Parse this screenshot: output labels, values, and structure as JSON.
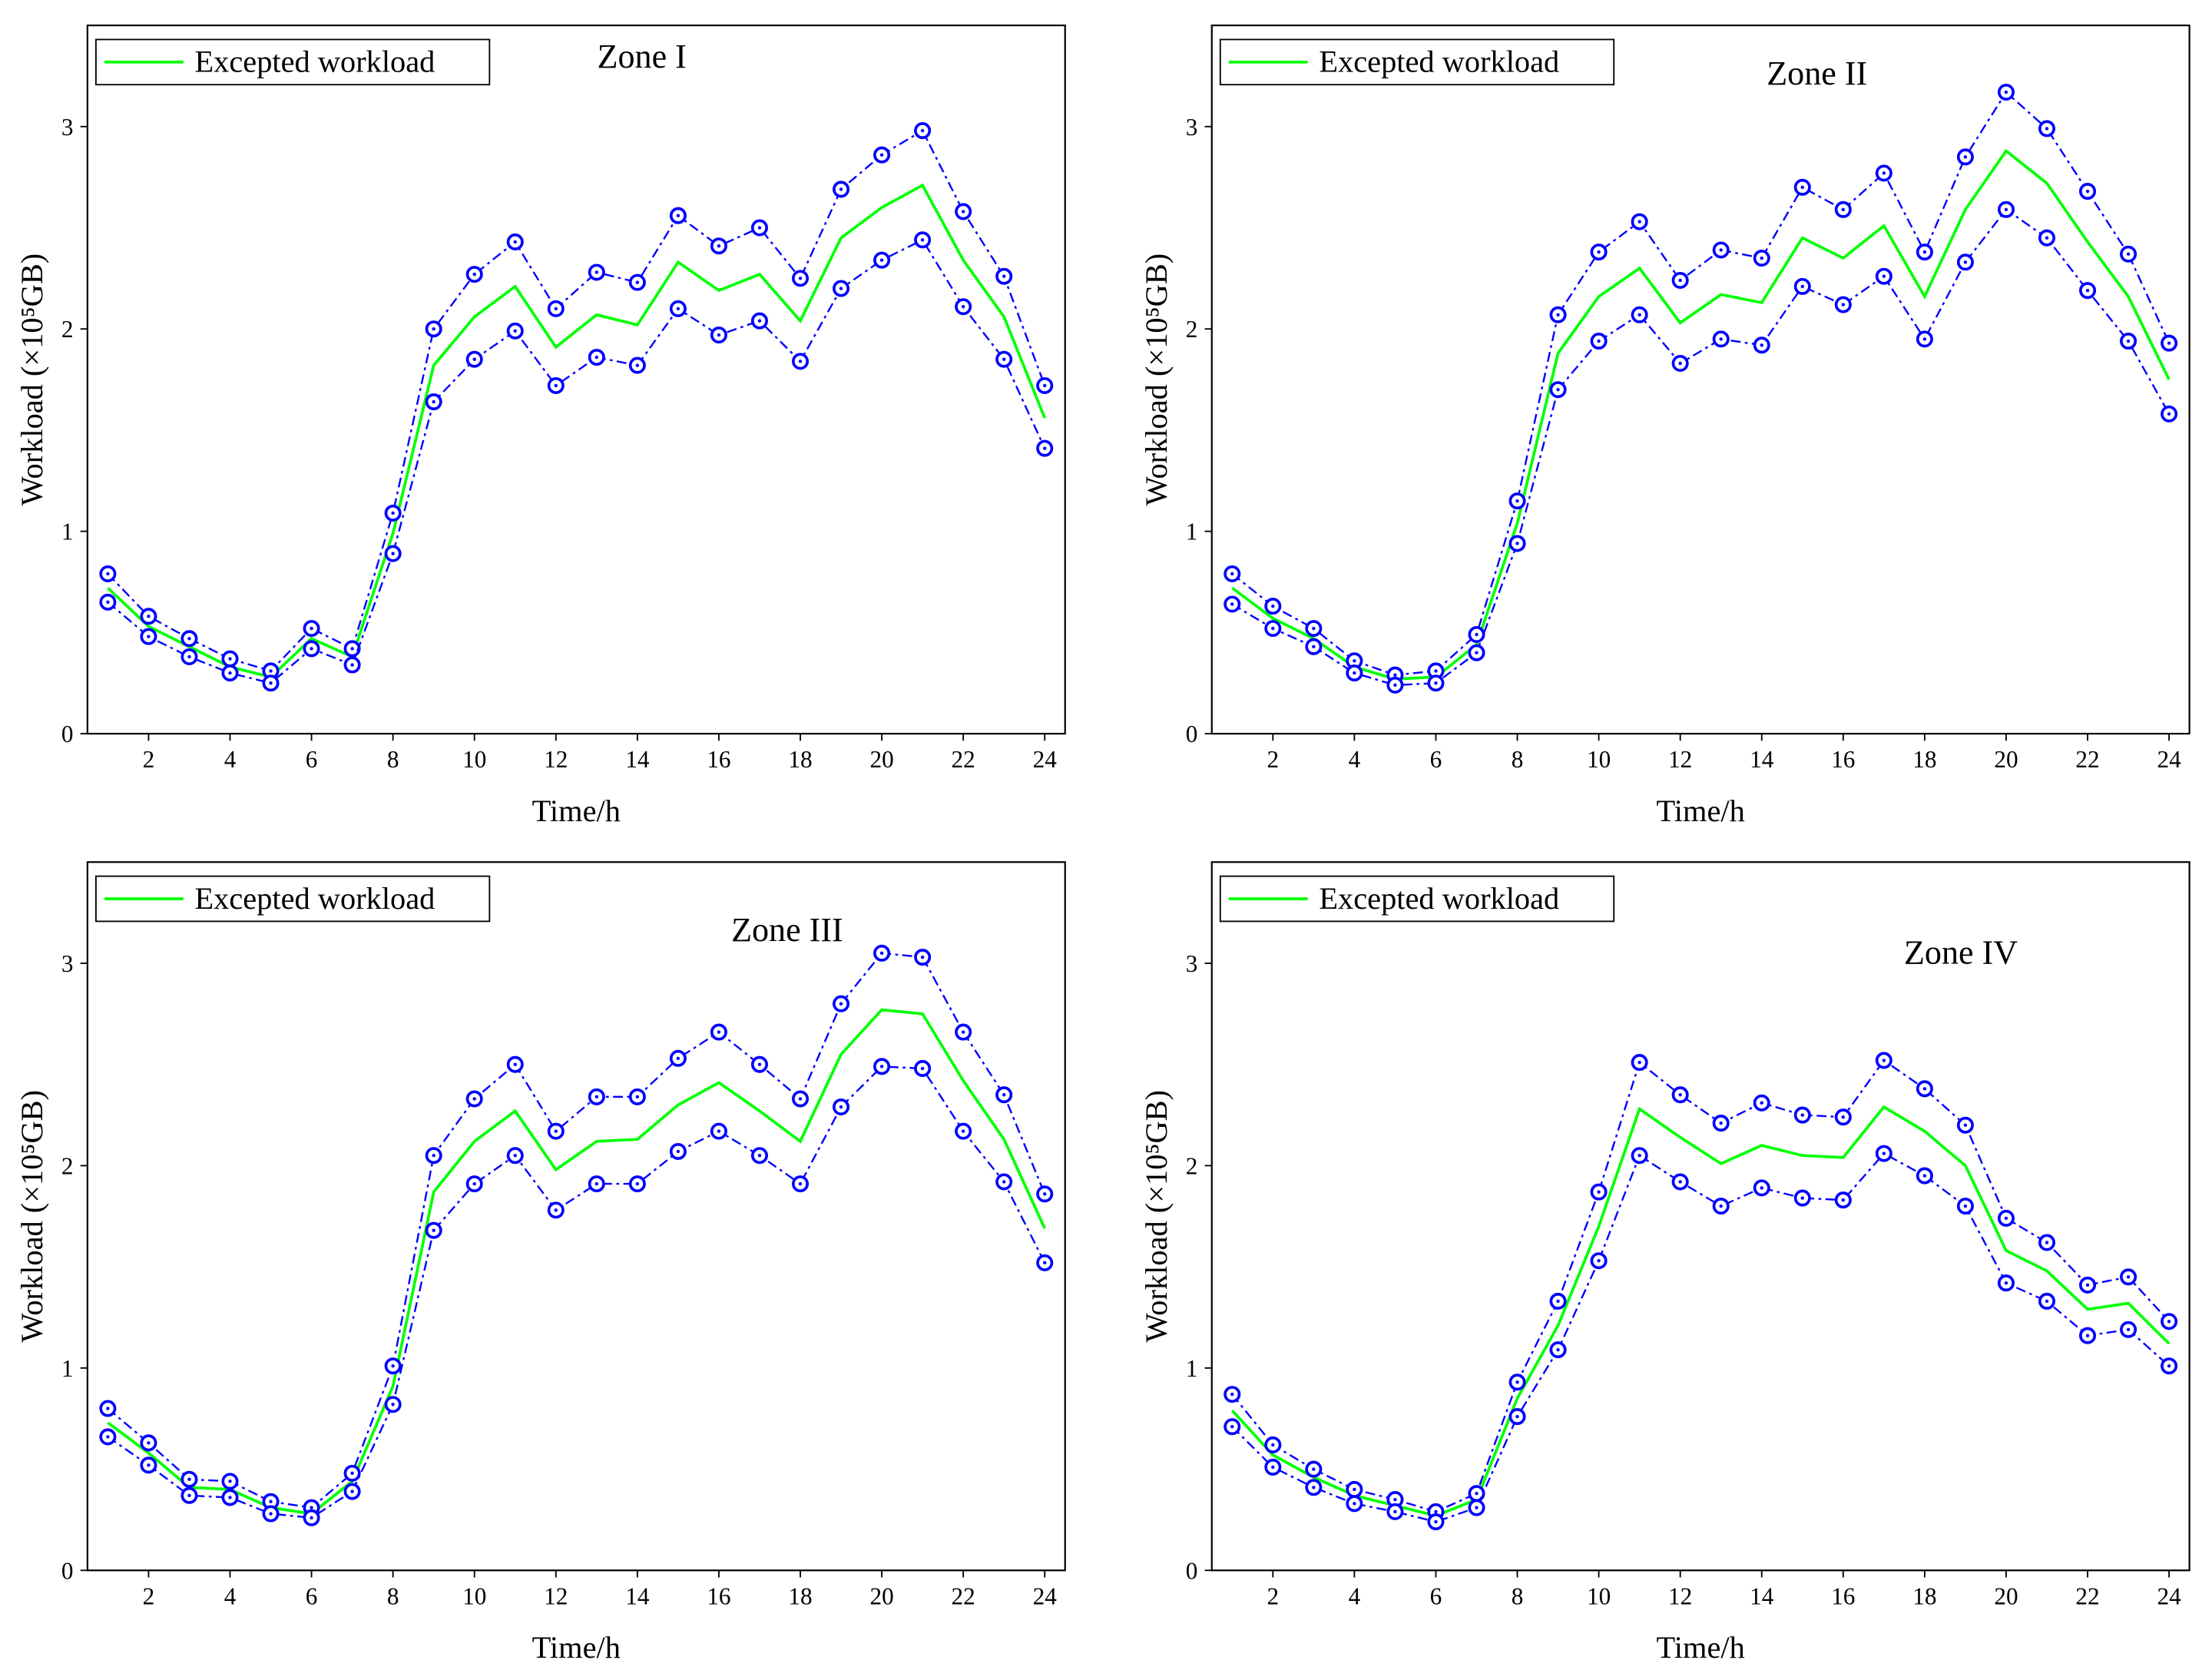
{
  "chart_data": [
    {
      "type": "line",
      "title": "Zone I",
      "x_label": "Time/h",
      "y_label": "Workload (×10⁵GB)",
      "x": [
        1,
        2,
        3,
        4,
        5,
        6,
        7,
        8,
        9,
        10,
        11,
        12,
        13,
        14,
        15,
        16,
        17,
        18,
        19,
        20,
        21,
        22,
        23,
        24
      ],
      "xlim": [
        0.5,
        24.5
      ],
      "xticks": [
        2,
        4,
        6,
        8,
        10,
        12,
        14,
        16,
        18,
        20,
        22,
        24
      ],
      "ylim": [
        0,
        3.5
      ],
      "yticks": [
        0,
        1,
        2,
        3
      ],
      "legend": "upper left",
      "series": [
        {
          "name": "Excepted workload",
          "color": "#00ff00",
          "style": "solid",
          "values": [
            0.72,
            0.53,
            0.43,
            0.33,
            0.28,
            0.47,
            0.38,
            0.99,
            1.82,
            2.06,
            2.21,
            1.91,
            2.07,
            2.02,
            2.33,
            2.19,
            2.27,
            2.04,
            2.45,
            2.6,
            2.71,
            2.34,
            2.06,
            1.56
          ]
        },
        {
          "color": "#0000ff",
          "style": "dash-dot",
          "marker": "circle",
          "values": [
            0.79,
            0.58,
            0.47,
            0.37,
            0.31,
            0.52,
            0.42,
            1.09,
            2.0,
            2.27,
            2.43,
            2.1,
            2.28,
            2.23,
            2.56,
            2.41,
            2.5,
            2.25,
            2.69,
            2.86,
            2.98,
            2.58,
            2.26,
            1.72
          ]
        },
        {
          "color": "#0000ff",
          "style": "dash-dot",
          "marker": "circle",
          "values": [
            0.65,
            0.48,
            0.38,
            0.3,
            0.25,
            0.42,
            0.34,
            0.89,
            1.64,
            1.85,
            1.99,
            1.72,
            1.86,
            1.82,
            2.1,
            1.97,
            2.04,
            1.84,
            2.2,
            2.34,
            2.44,
            2.11,
            1.85,
            1.41
          ]
        }
      ]
    },
    {
      "type": "line",
      "title": "Zone II",
      "x_label": "Time/h",
      "y_label": "Workload (×10⁵GB)",
      "x": [
        1,
        2,
        3,
        4,
        5,
        6,
        7,
        8,
        9,
        10,
        11,
        12,
        13,
        14,
        15,
        16,
        17,
        18,
        19,
        20,
        21,
        22,
        23,
        24
      ],
      "xlim": [
        0.5,
        24.5
      ],
      "xticks": [
        2,
        4,
        6,
        8,
        10,
        12,
        14,
        16,
        18,
        20,
        22,
        24
      ],
      "ylim": [
        0,
        3.5
      ],
      "yticks": [
        0,
        1,
        2,
        3
      ],
      "legend": "upper left",
      "series": [
        {
          "name": "Excepted workload",
          "color": "#00ff00",
          "style": "solid",
          "values": [
            0.72,
            0.57,
            0.47,
            0.33,
            0.27,
            0.28,
            0.44,
            1.04,
            1.88,
            2.16,
            2.3,
            2.03,
            2.17,
            2.13,
            2.45,
            2.35,
            2.51,
            2.16,
            2.59,
            2.88,
            2.72,
            2.43,
            2.16,
            1.75
          ]
        },
        {
          "color": "#0000ff",
          "style": "dash-dot",
          "marker": "circle",
          "values": [
            0.79,
            0.63,
            0.52,
            0.36,
            0.29,
            0.31,
            0.49,
            1.15,
            2.07,
            2.38,
            2.53,
            2.24,
            2.39,
            2.35,
            2.7,
            2.59,
            2.77,
            2.38,
            2.85,
            3.17,
            2.99,
            2.68,
            2.37,
            1.93
          ]
        },
        {
          "color": "#0000ff",
          "style": "dash-dot",
          "marker": "circle",
          "values": [
            0.64,
            0.52,
            0.43,
            0.3,
            0.24,
            0.25,
            0.4,
            0.94,
            1.7,
            1.94,
            2.07,
            1.83,
            1.95,
            1.92,
            2.21,
            2.12,
            2.26,
            1.95,
            2.33,
            2.59,
            2.45,
            2.19,
            1.94,
            1.58
          ]
        }
      ]
    },
    {
      "type": "line",
      "title": "Zone III",
      "x_label": "Time/h",
      "y_label": "Workload (×10⁵GB)",
      "x": [
        1,
        2,
        3,
        4,
        5,
        6,
        7,
        8,
        9,
        10,
        11,
        12,
        13,
        14,
        15,
        16,
        17,
        18,
        19,
        20,
        21,
        22,
        23,
        24
      ],
      "xlim": [
        0.5,
        24.5
      ],
      "xticks": [
        2,
        4,
        6,
        8,
        10,
        12,
        14,
        16,
        18,
        20,
        22,
        24
      ],
      "ylim": [
        0,
        3.5
      ],
      "yticks": [
        0,
        1,
        2,
        3
      ],
      "legend": "upper left",
      "series": [
        {
          "name": "Excepted workload",
          "color": "#00ff00",
          "style": "solid",
          "values": [
            0.73,
            0.58,
            0.41,
            0.4,
            0.31,
            0.28,
            0.44,
            0.91,
            1.87,
            2.12,
            2.27,
            1.98,
            2.12,
            2.13,
            2.3,
            2.41,
            2.27,
            2.12,
            2.55,
            2.77,
            2.75,
            2.42,
            2.13,
            1.69
          ]
        },
        {
          "color": "#0000ff",
          "style": "dash-dot",
          "marker": "circle",
          "values": [
            0.8,
            0.63,
            0.45,
            0.44,
            0.34,
            0.31,
            0.48,
            1.01,
            2.05,
            2.33,
            2.5,
            2.17,
            2.34,
            2.34,
            2.53,
            2.66,
            2.5,
            2.33,
            2.8,
            3.05,
            3.03,
            2.66,
            2.35,
            1.86
          ]
        },
        {
          "color": "#0000ff",
          "style": "dash-dot",
          "marker": "circle",
          "values": [
            0.66,
            0.52,
            0.37,
            0.36,
            0.28,
            0.26,
            0.39,
            0.82,
            1.68,
            1.91,
            2.05,
            1.78,
            1.91,
            1.91,
            2.07,
            2.17,
            2.05,
            1.91,
            2.29,
            2.49,
            2.48,
            2.17,
            1.92,
            1.52
          ]
        }
      ]
    },
    {
      "type": "line",
      "title": "Zone IV",
      "x_label": "Time/h",
      "y_label": "Workload (×10⁵GB)",
      "x": [
        1,
        2,
        3,
        4,
        5,
        6,
        7,
        8,
        9,
        10,
        11,
        12,
        13,
        14,
        15,
        16,
        17,
        18,
        19,
        20,
        21,
        22,
        23,
        24
      ],
      "xlim": [
        0.5,
        24.5
      ],
      "xticks": [
        2,
        4,
        6,
        8,
        10,
        12,
        14,
        16,
        18,
        20,
        22,
        24
      ],
      "ylim": [
        0,
        3.5
      ],
      "yticks": [
        0,
        1,
        2,
        3
      ],
      "legend": "upper left",
      "series": [
        {
          "name": "Excepted workload",
          "color": "#00ff00",
          "style": "solid",
          "values": [
            0.79,
            0.57,
            0.46,
            0.37,
            0.32,
            0.27,
            0.35,
            0.85,
            1.21,
            1.7,
            2.28,
            2.14,
            2.01,
            2.1,
            2.05,
            2.04,
            2.29,
            2.17,
            2.0,
            1.58,
            1.48,
            1.29,
            1.32,
            1.12
          ]
        },
        {
          "color": "#0000ff",
          "style": "dash-dot",
          "marker": "circle",
          "values": [
            0.87,
            0.62,
            0.5,
            0.4,
            0.35,
            0.29,
            0.38,
            0.93,
            1.33,
            1.87,
            2.51,
            2.35,
            2.21,
            2.31,
            2.25,
            2.24,
            2.52,
            2.38,
            2.2,
            1.74,
            1.62,
            1.41,
            1.45,
            1.23
          ]
        },
        {
          "color": "#0000ff",
          "style": "dash-dot",
          "marker": "circle",
          "values": [
            0.71,
            0.51,
            0.41,
            0.33,
            0.29,
            0.24,
            0.31,
            0.76,
            1.09,
            1.53,
            2.05,
            1.92,
            1.8,
            1.89,
            1.84,
            1.83,
            2.06,
            1.95,
            1.8,
            1.42,
            1.33,
            1.16,
            1.19,
            1.01
          ]
        }
      ]
    }
  ]
}
